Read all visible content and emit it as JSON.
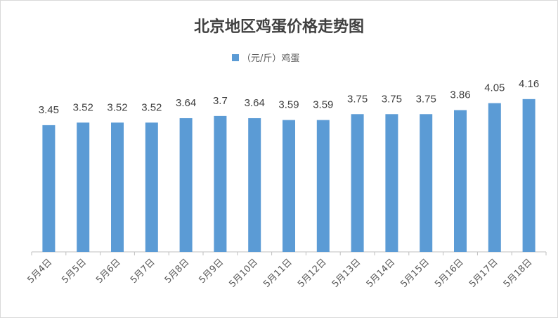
{
  "chart_data": {
    "type": "bar",
    "title": "北京地区鸡蛋价格走势图",
    "legend": {
      "position": "top",
      "entries": [
        "（元/斤）鸡蛋"
      ]
    },
    "categories": [
      "5月4日",
      "5月5日",
      "5月6日",
      "5月7日",
      "5月8日",
      "5月9日",
      "5月10日",
      "5月11日",
      "5月12日",
      "5月13日",
      "5月14日",
      "5月15日",
      "5月16日",
      "5月17日",
      "5月18日"
    ],
    "series": [
      {
        "name": "（元/斤）鸡蛋",
        "values": [
          3.45,
          3.52,
          3.52,
          3.52,
          3.64,
          3.7,
          3.64,
          3.59,
          3.59,
          3.75,
          3.75,
          3.75,
          3.86,
          4.05,
          4.16
        ],
        "labels": [
          "3.45",
          "3.52",
          "3.52",
          "3.52",
          "3.64",
          "3.7",
          "3.64",
          "3.59",
          "3.59",
          "3.75",
          "3.75",
          "3.75",
          "3.86",
          "4.05",
          "4.16"
        ]
      }
    ],
    "ylim": [
      0,
      5
    ],
    "grid": false,
    "colors": {
      "bar": "#5b9bd5",
      "axis": "#bfbfbf"
    }
  }
}
